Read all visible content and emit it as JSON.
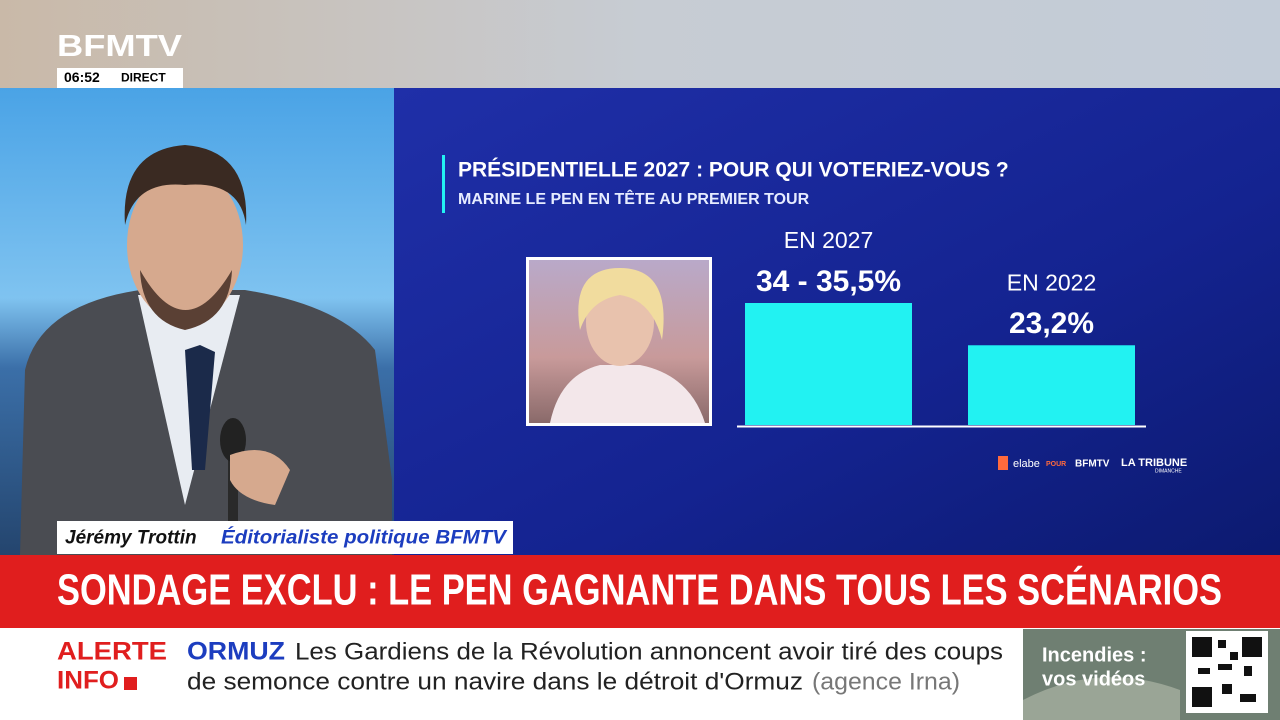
{
  "header": {
    "logo": "BFMTV",
    "time": "06:52",
    "live": "DIRECT"
  },
  "chart_data": {
    "type": "bar",
    "title": "PRÉSIDENTIELLE 2027 : POUR QUI VOTERIEZ-VOUS ?",
    "subtitle": "MARINE LE PEN EN TÊTE AU PREMIER TOUR",
    "categories": [
      "EN 2027",
      "EN 2022"
    ],
    "values": [
      35.5,
      23.2
    ],
    "value_labels": [
      "34 - 35,5%",
      "23,2%"
    ],
    "color": "#22f2f2"
  },
  "credits": {
    "pollster": "elabe",
    "connector": "POUR",
    "media_1": "BFMTV",
    "media_2": "LA TRIBUNE",
    "media_2_sub": "DIMANCHE"
  },
  "lower_third": {
    "name": "Jérémy Trottin",
    "role": "Éditorialiste politique BFMTV"
  },
  "headline": "SONDAGE EXCLU : LE PEN GAGNANTE DANS TOUS LES SCÉNARIOS",
  "ticker": {
    "label_1": "ALERTE",
    "label_2": "INFO",
    "topic": "ORMUZ",
    "text_1": "Les Gardiens de la Révolution annoncent avoir tiré des coups",
    "text_2": "de semonce contre un navire dans le détroit d'Ormuz",
    "source": "(agence Irna)"
  },
  "promo": {
    "line_1": "Incendies :",
    "line_2": "vos vidéos"
  }
}
